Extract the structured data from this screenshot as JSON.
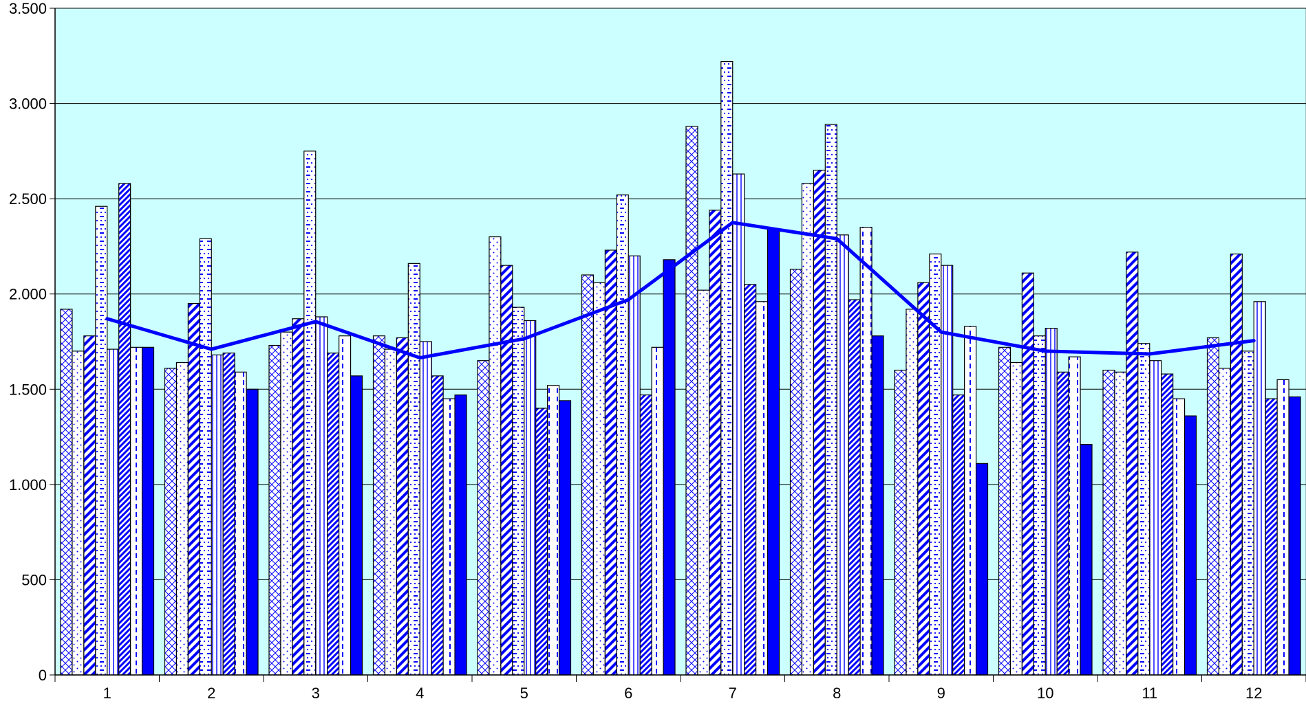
{
  "chart_data": {
    "type": "bar",
    "title": "",
    "xlabel": "",
    "ylabel": "",
    "categories": [
      "1",
      "2",
      "3",
      "4",
      "5",
      "6",
      "7",
      "8",
      "9",
      "10",
      "11",
      "12"
    ],
    "ylim": [
      0,
      3500
    ],
    "y_ticks": [
      0,
      500,
      1000,
      1500,
      2000,
      2500,
      3000,
      3500
    ],
    "y_tick_labels": [
      "0",
      "500",
      "1.000",
      "1.500",
      "2.000",
      "2.500",
      "3.000",
      "3.500"
    ],
    "grid": true,
    "legend": "none",
    "plot_background": "#ccffff",
    "accent_color": "#0000ff",
    "series": [
      {
        "pattern": "crosshatch",
        "values": [
          1920,
          1610,
          1730,
          1780,
          1650,
          2100,
          2880,
          2130,
          1600,
          1720,
          1600,
          1770
        ]
      },
      {
        "pattern": "dots",
        "values": [
          1700,
          1640,
          1800,
          1710,
          2300,
          2060,
          2020,
          2580,
          1920,
          1640,
          1590,
          1610
        ]
      },
      {
        "pattern": "wide-diagonal",
        "values": [
          1780,
          1950,
          1870,
          1770,
          2150,
          2230,
          2440,
          2650,
          2060,
          2110,
          2220,
          2210
        ]
      },
      {
        "pattern": "dash-dots",
        "values": [
          2460,
          2290,
          2750,
          2160,
          1930,
          2520,
          3220,
          2890,
          2210,
          1780,
          1740,
          1700
        ]
      },
      {
        "pattern": "vertical-lines",
        "values": [
          1710,
          1680,
          1880,
          1750,
          1860,
          2200,
          2630,
          2310,
          2150,
          1820,
          1650,
          1960
        ]
      },
      {
        "pattern": "narrow-diagonal",
        "values": [
          2580,
          1690,
          1690,
          1570,
          1400,
          1470,
          2050,
          1970,
          1470,
          1590,
          1580,
          1450
        ]
      },
      {
        "pattern": "dashed-vertical",
        "values": [
          1720,
          1590,
          1780,
          1450,
          1520,
          1720,
          1960,
          2350,
          1830,
          1670,
          1450,
          1550
        ]
      },
      {
        "pattern": "solid",
        "values": [
          1720,
          1500,
          1570,
          1470,
          1440,
          2180,
          2340,
          1780,
          1110,
          1210,
          1360,
          1460
        ]
      }
    ],
    "line_series": {
      "type": "line",
      "values": [
        1870,
        1710,
        1855,
        1665,
        1765,
        1970,
        2375,
        2290,
        1800,
        1700,
        1685,
        1755
      ]
    }
  }
}
